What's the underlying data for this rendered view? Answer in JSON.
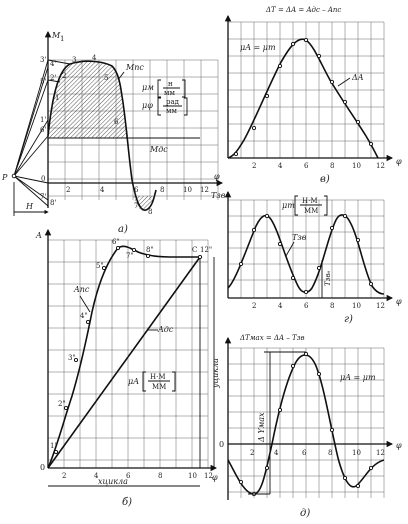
{
  "panel_a": {
    "y_axis_label": "M",
    "y_axis_sub": "1",
    "x_axis_label": "φ",
    "pole_label": "P",
    "h_label": "H",
    "x_ticks": [
      "0",
      "2",
      "4",
      "6",
      "8",
      "10",
      "12"
    ],
    "point_labels": [
      "1",
      "2",
      "3",
      "4",
      "5",
      "6",
      "7",
      "8"
    ],
    "left_labels": [
      "3'",
      "4'",
      "2'",
      "5'",
      "1'",
      "6'",
      "0",
      "7'",
      "8'"
    ],
    "curve_label_top": "Mпс",
    "curve_label_bottom": "Mдс",
    "scale_1_sym": "μм",
    "scale_1_num": "н",
    "scale_1_den": "мм",
    "scale_2_sym": "μφ",
    "scale_2_num": "рад",
    "scale_2_den": "мм",
    "caption": "а)"
  },
  "panel_b": {
    "y_axis_label": "A",
    "x_axis_label": "φ",
    "x_ticks": [
      "2",
      "4",
      "6",
      "8",
      "10",
      "12"
    ],
    "origin_label": "0",
    "point_labels": [
      "1\"",
      "2\"",
      "3\"",
      "4\"",
      "5\"",
      "6\"",
      "7\"",
      "8\"",
      "12\""
    ],
    "c_label": "C",
    "curve_label_apc": "Aпс",
    "curve_label_adc": "Aдс",
    "scale_sym": "μA",
    "scale_num": "Н·М",
    "scale_den": "ММ",
    "ycycle_label": "yцикла",
    "xcycle_label": "хцикла",
    "caption": "б)"
  },
  "panel_v": {
    "title": "ΔT = ΔA = Aдс – Aпс",
    "scale_text": "μA = μт",
    "curve_label": "ΔA",
    "x_axis_label": "φ",
    "x_ticks": [
      "2",
      "4",
      "6",
      "8",
      "10",
      "12"
    ],
    "caption": "в)"
  },
  "panel_g": {
    "y_axis_label": "Tзв",
    "scale_sym": "μт",
    "scale_num": "Н·М",
    "scale_den": "ММ",
    "curve_label": "Tзв",
    "measure_label": "Tзв₆",
    "x_axis_label": "φ",
    "x_ticks": [
      "2",
      "4",
      "6",
      "8",
      "10",
      "12"
    ],
    "caption": "г)"
  },
  "panel_d": {
    "title": "ΔTмах = ΔA – Tзв",
    "scale_text": "μA = μт",
    "dy_label": "Δ Yмах",
    "zero_label": "0",
    "x_axis_label": "φ",
    "x_ticks": [
      "2",
      "4",
      "6",
      "8",
      "10",
      "12"
    ],
    "caption": "д)"
  }
}
